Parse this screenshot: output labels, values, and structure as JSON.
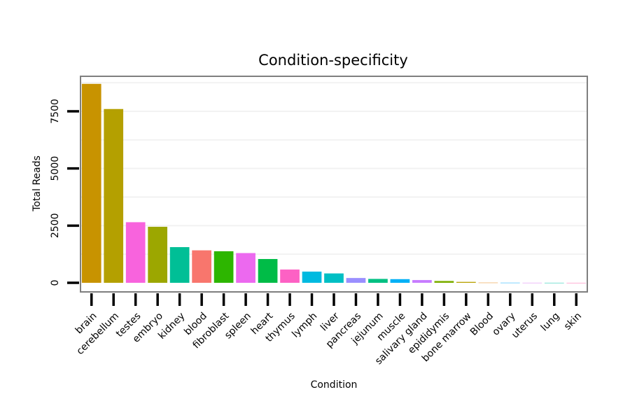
{
  "chart_data": {
    "type": "bar",
    "title": "Condition-specificity",
    "xlabel": "Condition",
    "ylabel": "Total Reads",
    "ylim": [
      -400,
      9000
    ],
    "yticks": [
      0,
      2500,
      5000,
      7500
    ],
    "grid": true,
    "categories": [
      "brain",
      "cerebellum",
      "testes",
      "embryo",
      "kidney",
      "blood",
      "fibroblast",
      "spleen",
      "heart",
      "thymus",
      "lymph",
      "liver",
      "pancreas",
      "jejunum",
      "muscle",
      "salivary gland",
      "epididymis",
      "bone marrow",
      "Blood",
      "ovary",
      "uterus",
      "lung",
      "skin"
    ],
    "values": [
      8700,
      7600,
      2650,
      2450,
      1560,
      1420,
      1380,
      1300,
      1040,
      580,
      490,
      410,
      210,
      170,
      160,
      120,
      80,
      40,
      8,
      5,
      3,
      2,
      1
    ],
    "colors": [
      "#C89300",
      "#B4A000",
      "#F863DD",
      "#9CA700",
      "#00BF96",
      "#F8766D",
      "#2DB600",
      "#EC69EF",
      "#00BC47",
      "#FD61C4",
      "#00BAE0",
      "#00BFC4",
      "#9A8FFF",
      "#00C082",
      "#00B0F6",
      "#C77CFF",
      "#7CAE00",
      "#B8A000",
      "#E68613",
      "#00A9FF",
      "#D87DF2",
      "#00C1A9",
      "#FF65AC"
    ]
  }
}
